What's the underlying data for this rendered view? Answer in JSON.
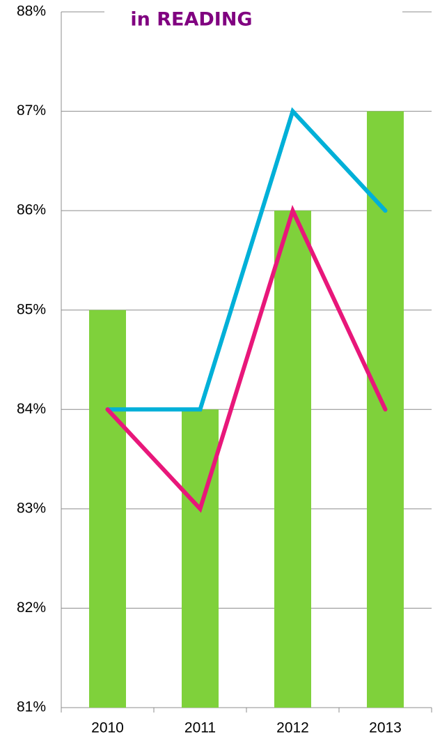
{
  "chart_data": {
    "type": "combo",
    "title": "in READING",
    "categories": [
      "2010",
      "2011",
      "2012",
      "2013"
    ],
    "series": [
      {
        "type": "bar",
        "color": "#7fd13b",
        "values": [
          85,
          84,
          86,
          87
        ]
      },
      {
        "type": "line",
        "color": "#00b0d8",
        "values": [
          84,
          84,
          87,
          86
        ]
      },
      {
        "type": "line",
        "color": "#e8177a",
        "values": [
          84,
          83,
          86,
          84
        ]
      }
    ],
    "ylim": [
      81,
      88
    ],
    "yticks": [
      {
        "value": 81,
        "label": "81%"
      },
      {
        "value": 82,
        "label": "82%"
      },
      {
        "value": 83,
        "label": "83%"
      },
      {
        "value": 84,
        "label": "84%"
      },
      {
        "value": 85,
        "label": "85%"
      },
      {
        "value": 86,
        "label": "86%"
      },
      {
        "value": 87,
        "label": "87%"
      },
      {
        "value": 88,
        "label": "88%"
      }
    ],
    "grid": true
  }
}
